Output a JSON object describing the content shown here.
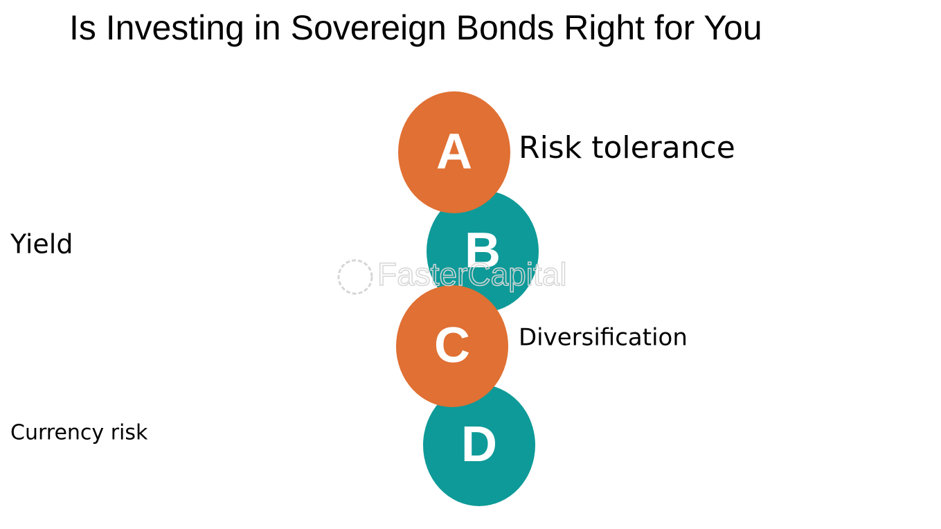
{
  "title": "Is Investing in Sovereign Bonds Right for You",
  "watermark": "FasterCapital",
  "nodes": [
    {
      "letter": "A",
      "label": "Risk tolerance"
    },
    {
      "letter": "B",
      "label": "Yield"
    },
    {
      "letter": "C",
      "label": "Diversification"
    },
    {
      "letter": "D",
      "label": "Currency risk"
    }
  ]
}
